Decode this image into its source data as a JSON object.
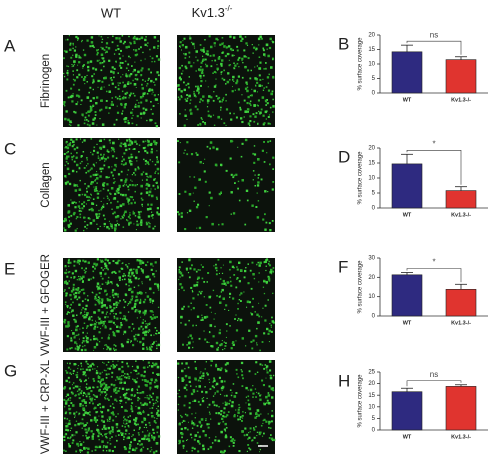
{
  "figure": {
    "col_wt": "WT",
    "col_ko": "Kv1.3",
    "col_ko_sup": "-/-",
    "rows": [
      {
        "letter": "A",
        "label": "Fibrinogen"
      },
      {
        "letter": "C",
        "label": "Collagen"
      },
      {
        "letter": "E",
        "label": "VWF-III + GFOGER"
      },
      {
        "letter": "G",
        "label": "VWF-III + CRP-XL"
      }
    ]
  },
  "chart_data": [
    {
      "type": "bar",
      "letter": "B",
      "ylabel": "% surface coverage",
      "categories": [
        "WT",
        "Kv1.3-/-"
      ],
      "values": [
        14.2,
        11.5
      ],
      "errors": [
        2.3,
        1.0
      ],
      "colors": [
        "#2e2a80",
        "#e0342f"
      ],
      "ylim": [
        0,
        20
      ],
      "yticks": [
        0,
        5,
        10,
        15,
        20
      ],
      "annotation": "ns"
    },
    {
      "type": "bar",
      "letter": "D",
      "ylabel": "% surface coverage",
      "categories": [
        "WT",
        "Kv1.3-/-"
      ],
      "values": [
        14.7,
        5.8
      ],
      "errors": [
        3.2,
        1.3
      ],
      "colors": [
        "#2e2a80",
        "#e0342f"
      ],
      "ylim": [
        0,
        20
      ],
      "yticks": [
        0,
        5,
        10,
        15,
        20
      ],
      "annotation": "*"
    },
    {
      "type": "bar",
      "letter": "F",
      "ylabel": "% surface coverage",
      "categories": [
        "WT",
        "Kv1.3-/-"
      ],
      "values": [
        21.3,
        13.8
      ],
      "errors": [
        1.2,
        2.6
      ],
      "colors": [
        "#2e2a80",
        "#e0342f"
      ],
      "ylim": [
        0,
        30
      ],
      "yticks": [
        0,
        10,
        20,
        30
      ],
      "annotation": "*"
    },
    {
      "type": "bar",
      "letter": "H",
      "ylabel": "% surface coverage",
      "categories": [
        "WT",
        "Kv1.3-/-"
      ],
      "values": [
        16.5,
        18.8
      ],
      "errors": [
        1.5,
        0.7
      ],
      "colors": [
        "#2e2a80",
        "#e0342f"
      ],
      "ylim": [
        0,
        25
      ],
      "yticks": [
        0,
        5,
        10,
        15,
        20,
        25
      ],
      "annotation": "ns"
    }
  ]
}
